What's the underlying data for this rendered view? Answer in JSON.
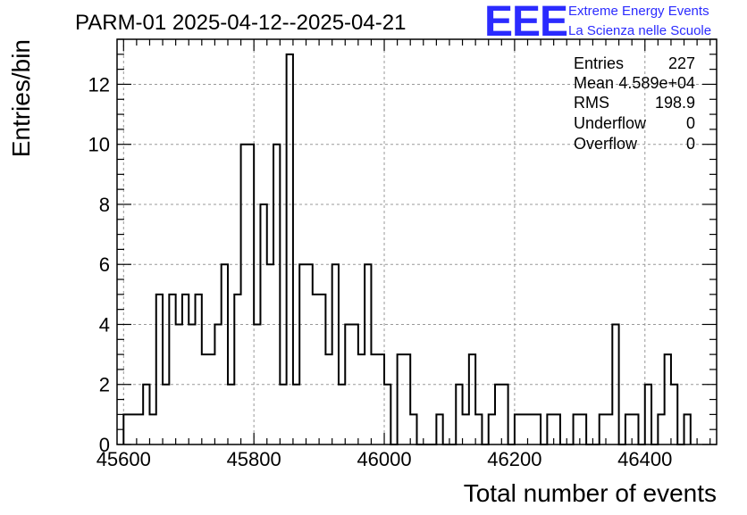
{
  "chart_title": "PARM-01 2025-04-12--2025-04-21",
  "logo": {
    "letters": "EEE",
    "line1": "Extreme Energy Events",
    "line2": "La Scienza nelle Scuole",
    "color": "#2b2bff"
  },
  "stats": {
    "rows": [
      {
        "label": "Entries",
        "value": "227"
      },
      {
        "label": "Mean",
        "value": "4.589e+04"
      },
      {
        "label": "RMS",
        "value": "198.9"
      },
      {
        "label": "Underflow",
        "value": "0"
      },
      {
        "label": "Overflow",
        "value": "0"
      }
    ]
  },
  "chart_data": {
    "type": "bar",
    "style": "step-histogram",
    "title": "PARM-01 2025-04-12--2025-04-21",
    "xlabel": "Total number of events",
    "ylabel": "Entries/bin",
    "xlim": [
      45590,
      46510
    ],
    "ylim": [
      0,
      13.5
    ],
    "bin_width": 10,
    "bin_start": 45600,
    "xticks": [
      45600,
      45800,
      46000,
      46200,
      46400
    ],
    "xtick_labels": [
      "45600",
      "45800",
      "46000",
      "46200",
      "46400"
    ],
    "yticks": [
      0,
      2,
      4,
      6,
      8,
      10,
      12
    ],
    "ytick_labels": [
      "0",
      "2",
      "4",
      "6",
      "8",
      "10",
      "12"
    ],
    "grid": true,
    "legend": "none",
    "values": [
      1,
      1,
      1,
      2,
      1,
      5,
      2,
      5,
      4,
      5,
      4,
      5,
      3,
      3,
      4,
      6,
      2,
      5,
      10,
      10,
      4,
      8,
      6,
      10,
      2,
      13,
      2,
      6,
      6,
      5,
      5,
      3,
      6,
      2,
      4,
      4,
      3,
      6,
      3,
      3,
      2,
      0,
      3,
      3,
      1,
      0,
      0,
      0,
      1,
      0,
      0,
      2,
      1,
      3,
      1,
      0,
      1,
      2,
      2,
      0,
      1,
      1,
      1,
      1,
      0,
      1,
      1,
      0,
      0,
      1,
      1,
      0,
      0,
      1,
      1,
      4,
      0,
      1,
      1,
      0,
      2,
      0,
      1,
      3,
      2,
      0,
      1
    ]
  }
}
